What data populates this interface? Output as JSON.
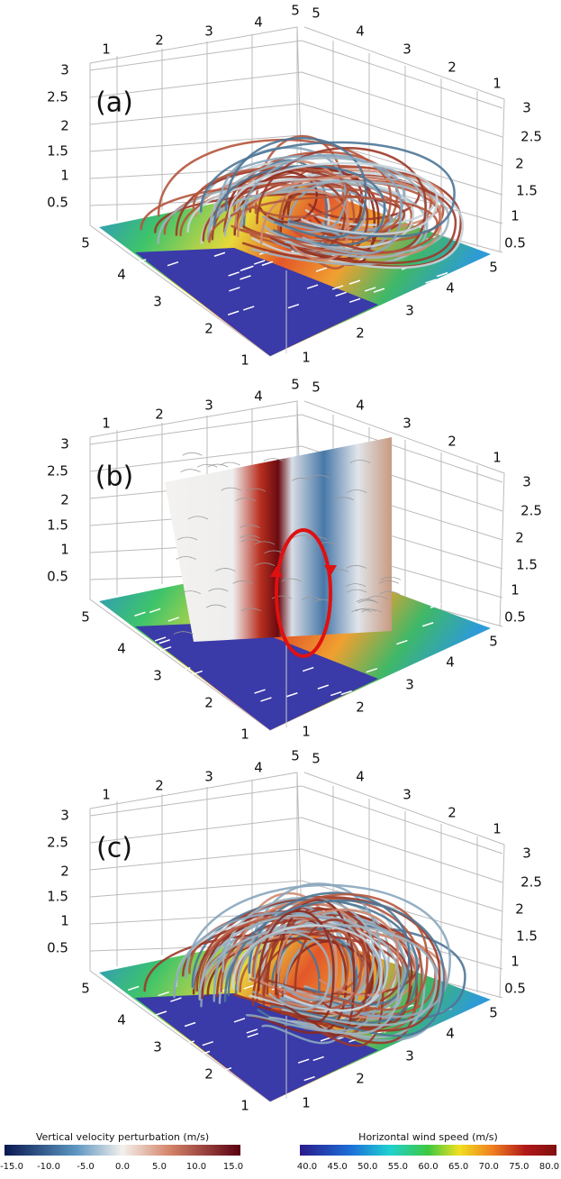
{
  "panels": [
    {
      "label": "(a)",
      "axes": {
        "top_left": [
          "1",
          "2",
          "3",
          "4",
          "5"
        ],
        "top_right": [
          "5",
          "4",
          "3",
          "2",
          "1"
        ],
        "z_left": [
          "3",
          "2.5",
          "2",
          "1.5",
          "1",
          "0.5"
        ],
        "z_right": [
          "3",
          "2.5",
          "2",
          "1.5",
          "1",
          "0.5"
        ],
        "bottom_left": [
          "5",
          "4",
          "3",
          "2",
          "1"
        ],
        "bottom_right": [
          "1",
          "2",
          "3",
          "4",
          "5"
        ]
      }
    },
    {
      "label": "(b)",
      "axes": {
        "top_left": [
          "1",
          "2",
          "3",
          "4",
          "5"
        ],
        "top_right": [
          "5",
          "4",
          "3",
          "2",
          "1"
        ],
        "z_left": [
          "3",
          "2.5",
          "2",
          "1.5",
          "1",
          "0.5"
        ],
        "z_right": [
          "3",
          "2.5",
          "2",
          "1.5",
          "1",
          "0.5"
        ],
        "bottom_left": [
          "5",
          "4",
          "3",
          "2",
          "1"
        ],
        "bottom_right": [
          "1",
          "2",
          "3",
          "4",
          "5"
        ]
      }
    },
    {
      "label": "(c)",
      "axes": {
        "top_left": [
          "1",
          "2",
          "3",
          "4",
          "5"
        ],
        "top_right": [
          "5",
          "4",
          "3",
          "2",
          "1"
        ],
        "z_left": [
          "3",
          "2.5",
          "2",
          "1.5",
          "1",
          "0.5"
        ],
        "z_right": [
          "3",
          "2.5",
          "2",
          "1.5",
          "1",
          "0.5"
        ],
        "bottom_left": [
          "5",
          "4",
          "3",
          "2",
          "1"
        ],
        "bottom_right": [
          "1",
          "2",
          "3",
          "4",
          "5"
        ]
      }
    }
  ],
  "colorbars": [
    {
      "title": "Vertical velocity perturbation (m/s)",
      "ticks": [
        "-15.0",
        "-10.0",
        "-5.0",
        "0.0",
        "5.0",
        "10.0",
        "15.0"
      ]
    },
    {
      "title": "Horizontal wind speed (m/s)",
      "ticks": [
        "40.0",
        "45.0",
        "50.0",
        "55.0",
        "60.0",
        "65.0",
        "70.0",
        "75.0",
        "80.0"
      ]
    }
  ]
}
